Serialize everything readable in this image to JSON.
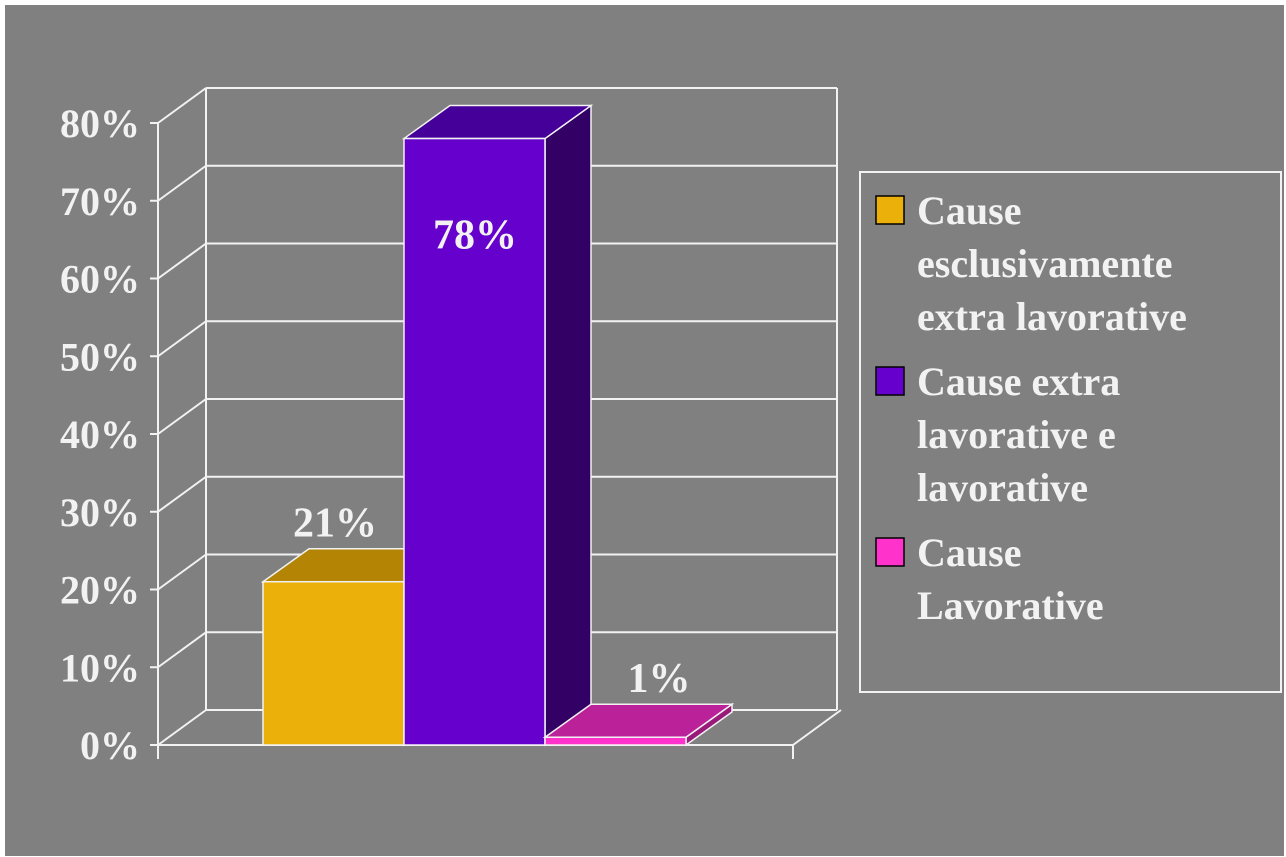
{
  "chart_data": {
    "type": "bar",
    "style": "3d-column",
    "categories": [
      "Cause esclusivamente extra lavorative",
      "Cause extra lavorative e lavorative",
      "Cause Lavorative"
    ],
    "values": [
      21,
      78,
      1
    ],
    "data_labels": [
      "21%",
      "78%",
      "1%"
    ],
    "ylim": [
      0,
      80
    ],
    "yticks": [
      0,
      10,
      20,
      30,
      40,
      50,
      60,
      70,
      80
    ],
    "ytick_labels": [
      "0%",
      "10%",
      "20%",
      "30%",
      "40%",
      "50%",
      "60%",
      "70%",
      "80%"
    ],
    "grid": true,
    "legend_position": "right",
    "legend": [
      {
        "lines": [
          "Cause",
          "esclusivamente",
          "extra lavorative"
        ],
        "color": "#ecb00a",
        "top_color": "#b48404",
        "side_color": "#8c6400"
      },
      {
        "lines": [
          "Cause extra",
          "lavorative e",
          "lavorative"
        ],
        "color": "#6600cc",
        "top_color": "#440099",
        "side_color": "#330066"
      },
      {
        "lines": [
          "Cause",
          "Lavorative"
        ],
        "color": "#ff33cc",
        "top_color": "#bb2299",
        "side_color": "#991a7a"
      }
    ],
    "colors": {
      "background": "#808080",
      "grid": "#f2f2f2",
      "text": "#f2f2f2"
    }
  }
}
